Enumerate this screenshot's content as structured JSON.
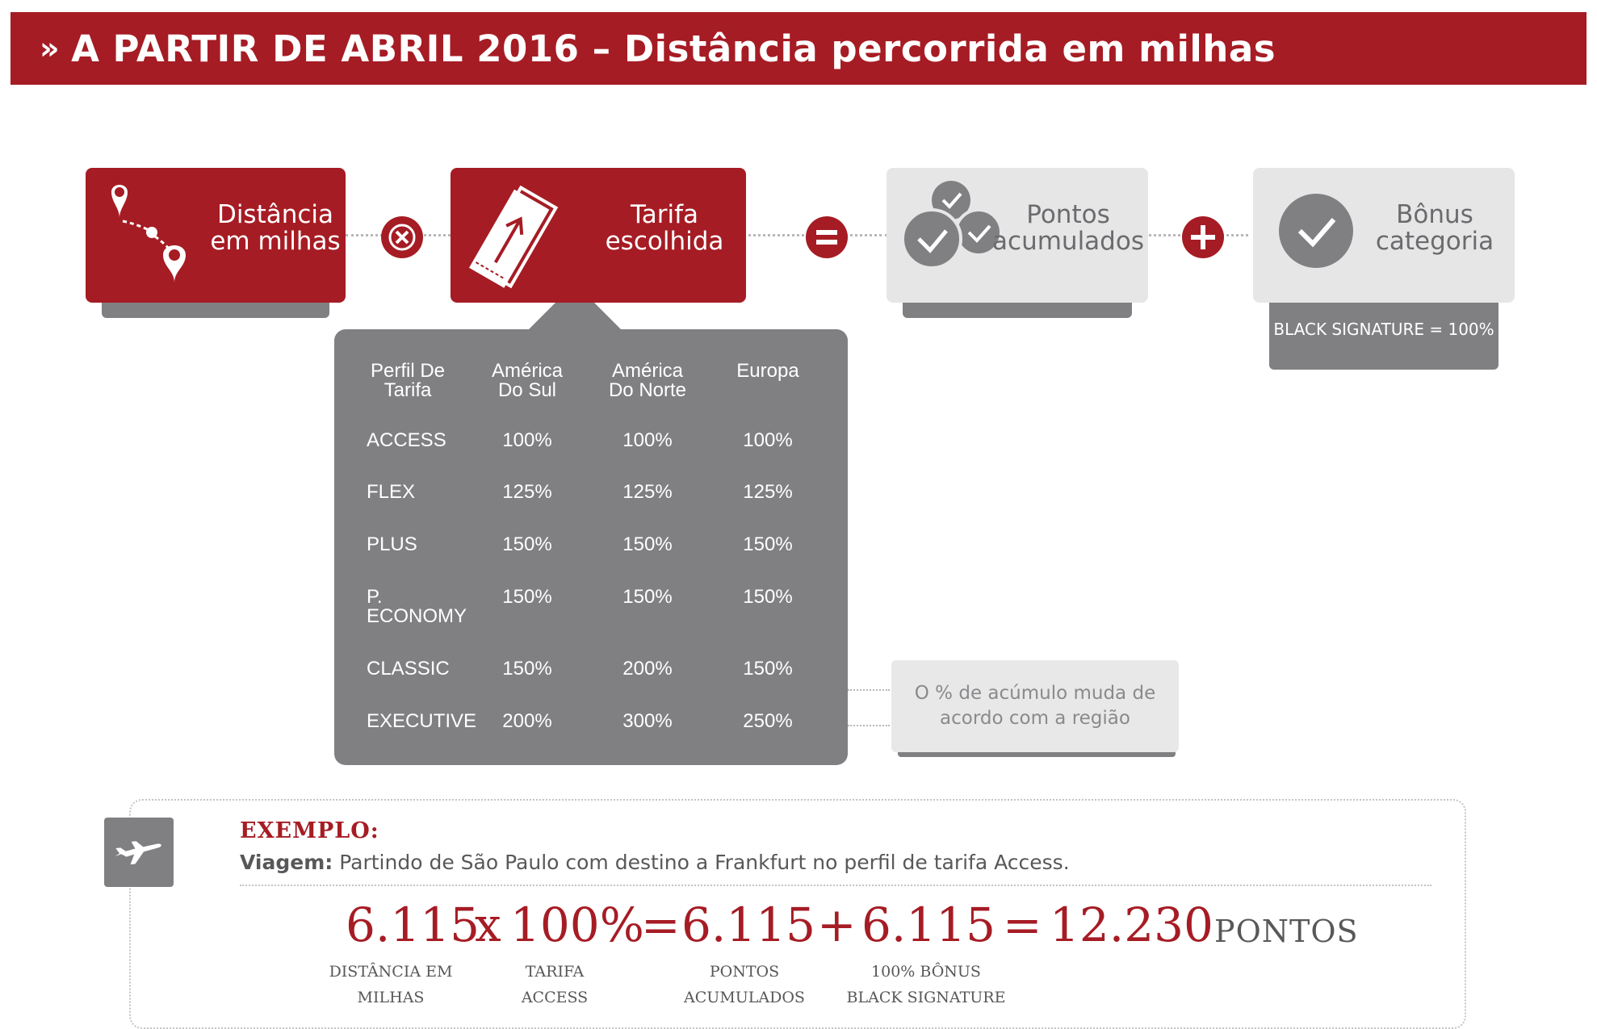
{
  "header": {
    "chevron": "»",
    "title": "A PARTIR DE ABRIL 2016 – Distância percorrida em milhas"
  },
  "formula": {
    "distance": {
      "line1": "Distância",
      "line2": "em milhas",
      "icon": "map-route-icon"
    },
    "fare": {
      "line1": "Tarifa",
      "line2": "escolhida",
      "icon": "ticket-icon"
    },
    "points": {
      "line1": "Pontos",
      "line2": "acumulados",
      "icon": "check-coins-icon"
    },
    "bonus": {
      "line1": "Bônus",
      "line2": "categoria",
      "icon": "check-circle-icon",
      "tag": "BLACK SIGNATURE = 100%"
    },
    "operators": {
      "times": "multiply-icon",
      "equals": "equals-icon",
      "plus": "plus-icon"
    }
  },
  "rate_table": {
    "headers": [
      "Perfil De Tarifa",
      "América Do Sul",
      "América Do Norte",
      "Europa"
    ],
    "header_lines": [
      [
        "Perfil De",
        "Tarifa"
      ],
      [
        "América",
        "Do Sul"
      ],
      [
        "América",
        "Do Norte"
      ],
      [
        "Europa",
        ""
      ]
    ],
    "rows": [
      {
        "profile": "ACCESS",
        "sul": "100%",
        "norte": "100%",
        "europa": "100%"
      },
      {
        "profile": "FLEX",
        "sul": "125%",
        "norte": "125%",
        "europa": "125%"
      },
      {
        "profile": "PLUS",
        "sul": "150%",
        "norte": "150%",
        "europa": "150%"
      },
      {
        "profile": "P. ECONOMY",
        "profile_line1": "P.",
        "profile_line2": "ECONOMY",
        "sul": "150%",
        "norte": "150%",
        "europa": "150%"
      },
      {
        "profile": "CLASSIC",
        "sul": "150%",
        "norte": "200%",
        "europa": "150%"
      },
      {
        "profile": "EXECUTIVE",
        "sul": "200%",
        "norte": "300%",
        "europa": "250%"
      }
    ]
  },
  "note": {
    "line1": "O % de acúmulo muda de",
    "line2": "acordo com a região"
  },
  "example": {
    "title": "EXEMPLO:",
    "trip_label": "Viagem:",
    "trip_text": "Partindo de São Paulo com destino a Frankfurt no perfil de tarifa Access.",
    "icon": "airplane-icon",
    "equation": {
      "distance": "6.115",
      "times": "x",
      "fare": "100%",
      "equals1": "=",
      "points": "6.115",
      "plus": "+",
      "bonus": "6.115",
      "equals2": "=",
      "total": "12.230",
      "unit": "PONTOS"
    },
    "captions": {
      "distance": [
        "DISTÂNCIA EM",
        "MILHAS"
      ],
      "fare": [
        "TARIFA",
        "ACCESS"
      ],
      "points": [
        "PONTOS",
        "ACUMULADOS"
      ],
      "bonus": [
        "100% BÔNUS",
        "BLACK SIGNATURE"
      ]
    }
  },
  "colors": {
    "brand_red": "#a61c24",
    "panel_grey": "#808083",
    "light_grey": "#e6e6e7"
  }
}
